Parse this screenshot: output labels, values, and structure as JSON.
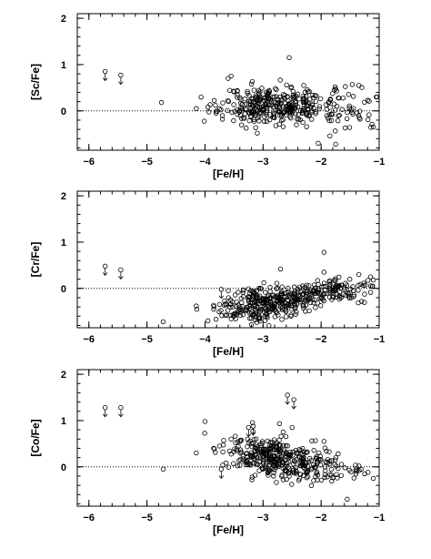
{
  "chart_data": [
    {
      "type": "scatter",
      "xlabel": "[Fe/H]",
      "ylabel": "[Sc/Fe]",
      "xlim": [
        -6.2,
        -1.0
      ],
      "ylim": [
        -0.85,
        2.1
      ],
      "xticks": [
        -6,
        -5,
        -4,
        -3,
        -2,
        -1
      ],
      "yticks": [
        0,
        1,
        2
      ],
      "reference_line": {
        "y": 0,
        "style": "dotted"
      },
      "upper_limits": [
        {
          "x": -5.72,
          "y": 0.85
        },
        {
          "x": -5.45,
          "y": 0.77
        }
      ],
      "points": [
        {
          "x": -4.75,
          "y": 0.18
        },
        {
          "x": -4.15,
          "y": 0.05
        },
        {
          "x": -3.95,
          "y": 0.08
        },
        {
          "x": -3.82,
          "y": 0.12
        },
        {
          "x": -3.75,
          "y": 0.05
        },
        {
          "x": -3.7,
          "y": -0.18
        },
        {
          "x": -3.55,
          "y": 0.75
        },
        {
          "x": -3.2,
          "y": 0.58
        },
        {
          "x": -2.55,
          "y": 1.15
        },
        {
          "x": -2.3,
          "y": 0.55
        },
        {
          "x": -2.05,
          "y": -0.7
        },
        {
          "x": -1.75,
          "y": -0.72
        },
        {
          "x": -1.35,
          "y": 0.55
        },
        {
          "x": -1.1,
          "y": -0.35
        },
        {
          "x": -1.05,
          "y": 0.3
        }
      ],
      "dense_cloud": {
        "x_center": -2.8,
        "x_spread": 0.45,
        "y_center": 0.12,
        "y_spread": 0.2,
        "n": 330,
        "seed": 11
      },
      "tail_cloud": {
        "x_center": -1.55,
        "x_spread": 0.28,
        "y_center": 0.02,
        "y_spread": 0.22,
        "n": 55,
        "seed": 23
      }
    },
    {
      "type": "scatter",
      "xlabel": "[Fe/H]",
      "ylabel": "[Cr/Fe]",
      "xlim": [
        -6.2,
        -1.0
      ],
      "ylim": [
        -0.85,
        2.1
      ],
      "xticks": [
        -6,
        -5,
        -4,
        -3,
        -2,
        -1
      ],
      "yticks": [
        0,
        1,
        2
      ],
      "reference_line": {
        "y": 0,
        "style": "dotted"
      },
      "upper_limits": [
        {
          "x": -5.72,
          "y": 0.48
        },
        {
          "x": -5.45,
          "y": 0.4
        },
        {
          "x": -3.72,
          "y": -0.02
        }
      ],
      "points": [
        {
          "x": -4.72,
          "y": -0.72
        },
        {
          "x": -4.15,
          "y": -0.38
        },
        {
          "x": -3.95,
          "y": -0.7
        },
        {
          "x": -3.85,
          "y": -0.45
        },
        {
          "x": -3.6,
          "y": -0.05
        },
        {
          "x": -2.7,
          "y": 0.42
        },
        {
          "x": -1.95,
          "y": 0.78
        },
        {
          "x": -1.95,
          "y": 0.35
        },
        {
          "x": -1.35,
          "y": 0.3
        },
        {
          "x": -1.15,
          "y": 0.25
        }
      ],
      "dense_cloud": {
        "x_center": -2.9,
        "x_spread": 0.4,
        "y_center": -0.3,
        "y_spread": 0.18,
        "n": 330,
        "seed": 37,
        "slope": 0.18
      },
      "tail_cloud": {
        "x_center": -1.7,
        "x_spread": 0.35,
        "y_center": -0.05,
        "y_spread": 0.12,
        "n": 110,
        "seed": 41,
        "slope": 0.12
      }
    },
    {
      "type": "scatter",
      "xlabel": "[Fe/H]",
      "ylabel": "[Co/Fe]",
      "xlim": [
        -6.2,
        -1.0
      ],
      "ylim": [
        -0.85,
        2.1
      ],
      "xticks": [
        -6,
        -5,
        -4,
        -3,
        -2,
        -1
      ],
      "yticks": [
        0,
        1,
        2
      ],
      "reference_line": {
        "y": 0,
        "style": "dotted"
      },
      "upper_limits": [
        {
          "x": -5.72,
          "y": 1.28
        },
        {
          "x": -5.45,
          "y": 1.28
        },
        {
          "x": -3.72,
          "y": -0.05
        },
        {
          "x": -3.25,
          "y": 0.85
        },
        {
          "x": -3.17,
          "y": 0.88
        },
        {
          "x": -2.58,
          "y": 1.55
        },
        {
          "x": -2.47,
          "y": 1.45
        }
      ],
      "points": [
        {
          "x": -4.72,
          "y": -0.05
        },
        {
          "x": -4.15,
          "y": 0.3
        },
        {
          "x": -4.0,
          "y": 0.98
        },
        {
          "x": -3.85,
          "y": 0.4
        },
        {
          "x": -3.75,
          "y": 0.45
        },
        {
          "x": -3.55,
          "y": 0.6
        },
        {
          "x": -2.5,
          "y": 0.85
        },
        {
          "x": -1.95,
          "y": 0.55
        },
        {
          "x": -1.55,
          "y": -0.7
        },
        {
          "x": -1.4,
          "y": -0.05
        },
        {
          "x": -1.25,
          "y": -0.15
        },
        {
          "x": -1.1,
          "y": -0.25
        }
      ],
      "dense_cloud": {
        "x_center": -2.8,
        "x_spread": 0.42,
        "y_center": 0.18,
        "y_spread": 0.2,
        "n": 340,
        "seed": 59,
        "slope": -0.1
      },
      "tail_cloud": {
        "x_center": -1.85,
        "x_spread": 0.3,
        "y_center": -0.1,
        "y_spread": 0.15,
        "n": 55,
        "seed": 67
      }
    }
  ]
}
